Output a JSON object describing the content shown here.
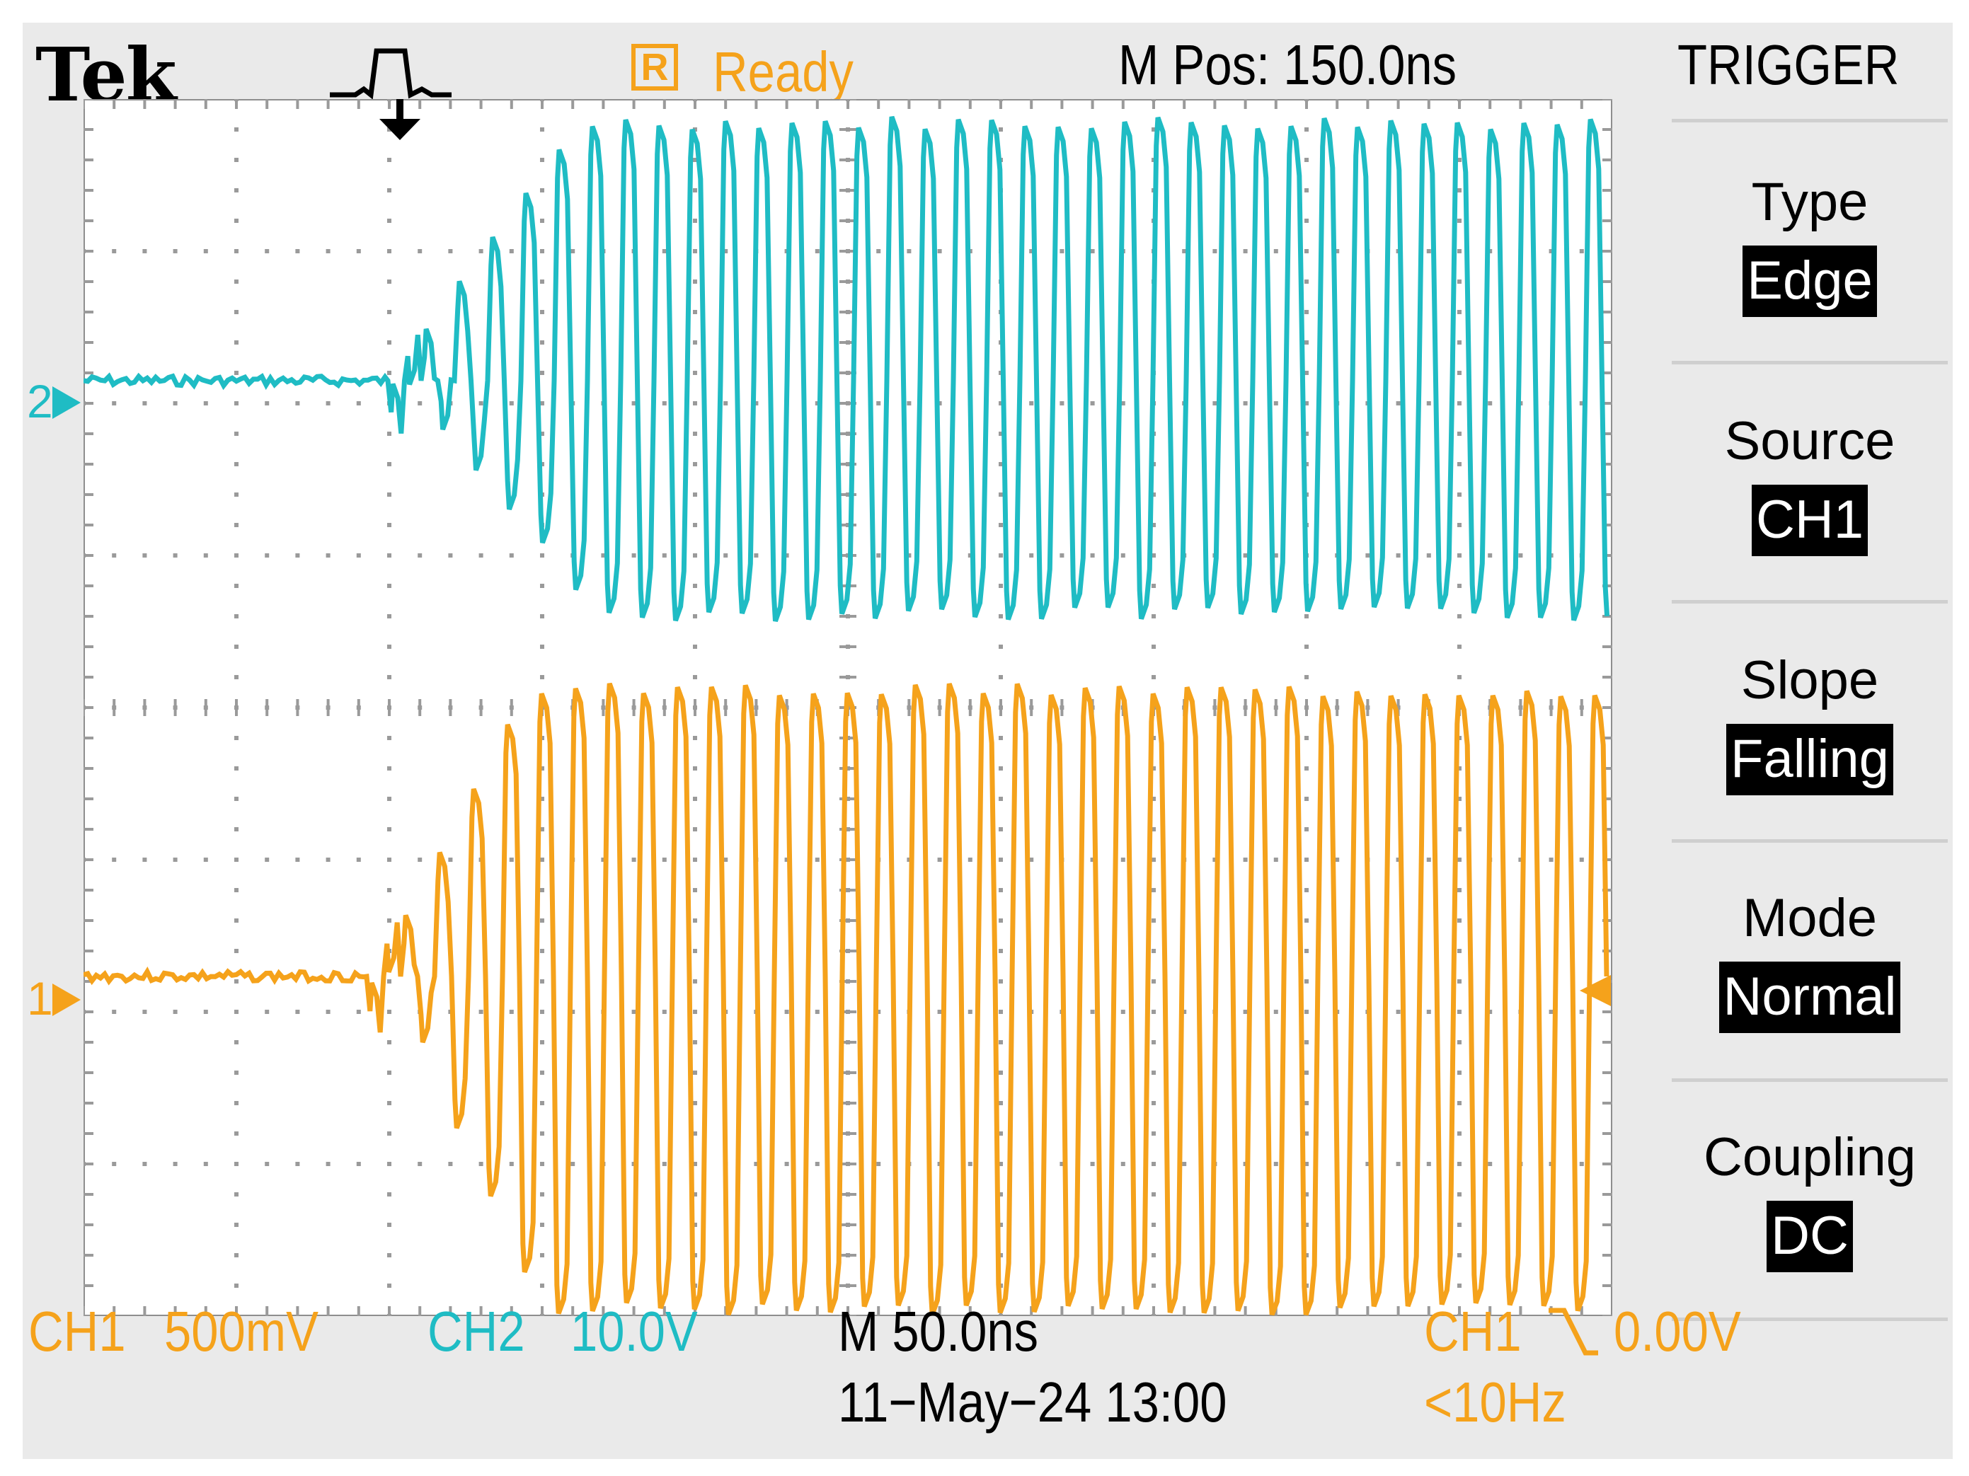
{
  "header": {
    "brand": "Tek",
    "status_icon_letter": "R",
    "status": "Ready",
    "position": "M Pos: 150.0ns",
    "menu_title": "TRIGGER"
  },
  "menu": [
    {
      "label": "Type",
      "value": "Edge"
    },
    {
      "label": "Source",
      "value": "CH1"
    },
    {
      "label": "Slope",
      "value": "Falling"
    },
    {
      "label": "Mode",
      "value": "Normal"
    },
    {
      "label": "Coupling",
      "value": "DC"
    }
  ],
  "channels": {
    "ch1": {
      "label": "CH1",
      "scale": "500mV",
      "marker": "1",
      "color": "#f5a21b"
    },
    "ch2": {
      "label": "CH2",
      "scale": "10.0V",
      "marker": "2",
      "color": "#1fbcc4"
    }
  },
  "footer": {
    "timebase": "M 50.0ns",
    "datetime": "11−May−24 13:00",
    "trigger_source": "CH1",
    "trigger_level": "0.00V",
    "trigger_frequency": "<10Hz"
  },
  "icons": {
    "trigger_glyph": "pulse-icon",
    "trigger_position": "down-arrow-icon",
    "slope": "falling-edge-icon"
  },
  "colors": {
    "ch1": "#f5a21b",
    "ch2": "#1fbcc4",
    "grid": "#9a9a9a",
    "background": "#eaeaea"
  }
}
